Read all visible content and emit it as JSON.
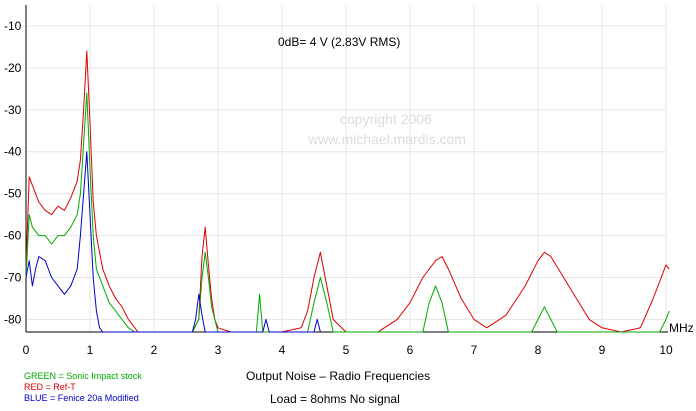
{
  "chart_data": {
    "type": "line",
    "title": "Output Noise – Radio Frequencies",
    "subtitle": "Load = 8ohms  No signal",
    "note": "0dB= 4 V (2.83V RMS)",
    "watermark": [
      "copyright    2006",
      "www.michael.mardis.com"
    ],
    "xlabel": "MHz",
    "ylabel": "",
    "xlim": [
      0,
      10
    ],
    "ylim": [
      -83,
      -5
    ],
    "x_ticks": [
      "0",
      "1",
      "2",
      "3",
      "4",
      "5",
      "6",
      "7",
      "8",
      "9",
      "10"
    ],
    "y_ticks": [
      "-10",
      "-20",
      "-30",
      "-40",
      "-50",
      "-60",
      "-70",
      "-80"
    ],
    "grid": true,
    "legend_position": "bottom-left",
    "legend": [
      {
        "text": "GREEN = Sonic Impact stock",
        "color": "#00aa00"
      },
      {
        "text": "RED = Ref-T",
        "color": "#dd0000"
      },
      {
        "text": "BLUE = Fenice 20a Modified",
        "color": "#0000cc"
      }
    ],
    "series": [
      {
        "color": "#dd0000",
        "x": [
          0,
          0.05,
          0.1,
          0.2,
          0.3,
          0.4,
          0.5,
          0.6,
          0.7,
          0.8,
          0.85,
          0.9,
          0.95,
          1.0,
          1.05,
          1.1,
          1.2,
          1.3,
          1.4,
          1.5,
          1.6,
          1.7,
          1.75,
          1.8,
          2.6,
          2.7,
          2.75,
          2.8,
          2.85,
          2.9,
          2.95,
          3.0,
          3.2,
          3.5,
          4.0,
          4.3,
          4.4,
          4.5,
          4.6,
          4.7,
          4.8,
          5.0,
          5.5,
          5.8,
          6.0,
          6.2,
          6.4,
          6.5,
          6.6,
          6.8,
          7.0,
          7.2,
          7.5,
          7.8,
          8.0,
          8.1,
          8.2,
          8.4,
          8.6,
          8.8,
          9.0,
          9.3,
          9.6,
          9.8,
          10.0,
          10.05
        ],
        "values": [
          -68,
          -46,
          -48,
          -52,
          -54,
          -55,
          -53,
          -54,
          -51,
          -47,
          -42,
          -30,
          -16,
          -33,
          -52,
          -60,
          -68,
          -72,
          -75,
          -77,
          -80,
          -82,
          -83,
          -83,
          -83,
          -80,
          -65,
          -58,
          -67,
          -75,
          -80,
          -82,
          -83,
          -83,
          -83,
          -82,
          -78,
          -70,
          -64,
          -72,
          -80,
          -83,
          -83,
          -80,
          -76,
          -70,
          -66,
          -65,
          -68,
          -75,
          -80,
          -82,
          -79,
          -72,
          -66,
          -64,
          -65,
          -70,
          -75,
          -80,
          -82,
          -83,
          -82,
          -75,
          -67,
          -68
        ]
      },
      {
        "color": "#00aa00",
        "x": [
          0,
          0.05,
          0.1,
          0.2,
          0.3,
          0.4,
          0.5,
          0.6,
          0.7,
          0.8,
          0.85,
          0.9,
          0.95,
          1.0,
          1.05,
          1.1,
          1.2,
          1.3,
          1.4,
          1.5,
          1.6,
          1.7,
          1.75,
          1.8,
          2.6,
          2.7,
          2.75,
          2.8,
          2.85,
          2.9,
          3.0,
          3.6,
          3.65,
          3.7,
          4.4,
          4.5,
          4.6,
          4.7,
          4.8,
          6.2,
          6.3,
          6.4,
          6.5,
          6.6,
          7.9,
          8.0,
          8.1,
          8.2,
          8.3,
          8.5,
          9.9,
          10.0,
          10.05
        ],
        "values": [
          -70,
          -55,
          -58,
          -60,
          -60,
          -62,
          -60,
          -60,
          -58,
          -55,
          -50,
          -38,
          -26,
          -44,
          -60,
          -68,
          -72,
          -76,
          -78,
          -80,
          -82,
          -83,
          -83,
          -83,
          -83,
          -80,
          -70,
          -64,
          -70,
          -77,
          -83,
          -83,
          -74,
          -83,
          -83,
          -76,
          -70,
          -76,
          -83,
          -83,
          -76,
          -72,
          -76,
          -83,
          -83,
          -80,
          -77,
          -80,
          -83,
          -83,
          -83,
          -80,
          -78
        ]
      },
      {
        "color": "#0000cc",
        "x": [
          0,
          0.05,
          0.1,
          0.15,
          0.2,
          0.3,
          0.4,
          0.5,
          0.6,
          0.7,
          0.8,
          0.85,
          0.9,
          0.95,
          1.0,
          1.05,
          1.1,
          1.15,
          1.2,
          1.25,
          1.3,
          2.6,
          2.65,
          2.7,
          2.75,
          2.8,
          3.0,
          3.7,
          3.75,
          3.8,
          4.5,
          4.55,
          4.6
        ],
        "values": [
          -70,
          -66,
          -72,
          -68,
          -65,
          -66,
          -70,
          -72,
          -74,
          -72,
          -68,
          -60,
          -50,
          -40,
          -55,
          -70,
          -78,
          -82,
          -83,
          -83,
          -83,
          -83,
          -80,
          -74,
          -79,
          -83,
          -83,
          -83,
          -80,
          -83,
          -83,
          -80,
          -83
        ]
      }
    ]
  }
}
